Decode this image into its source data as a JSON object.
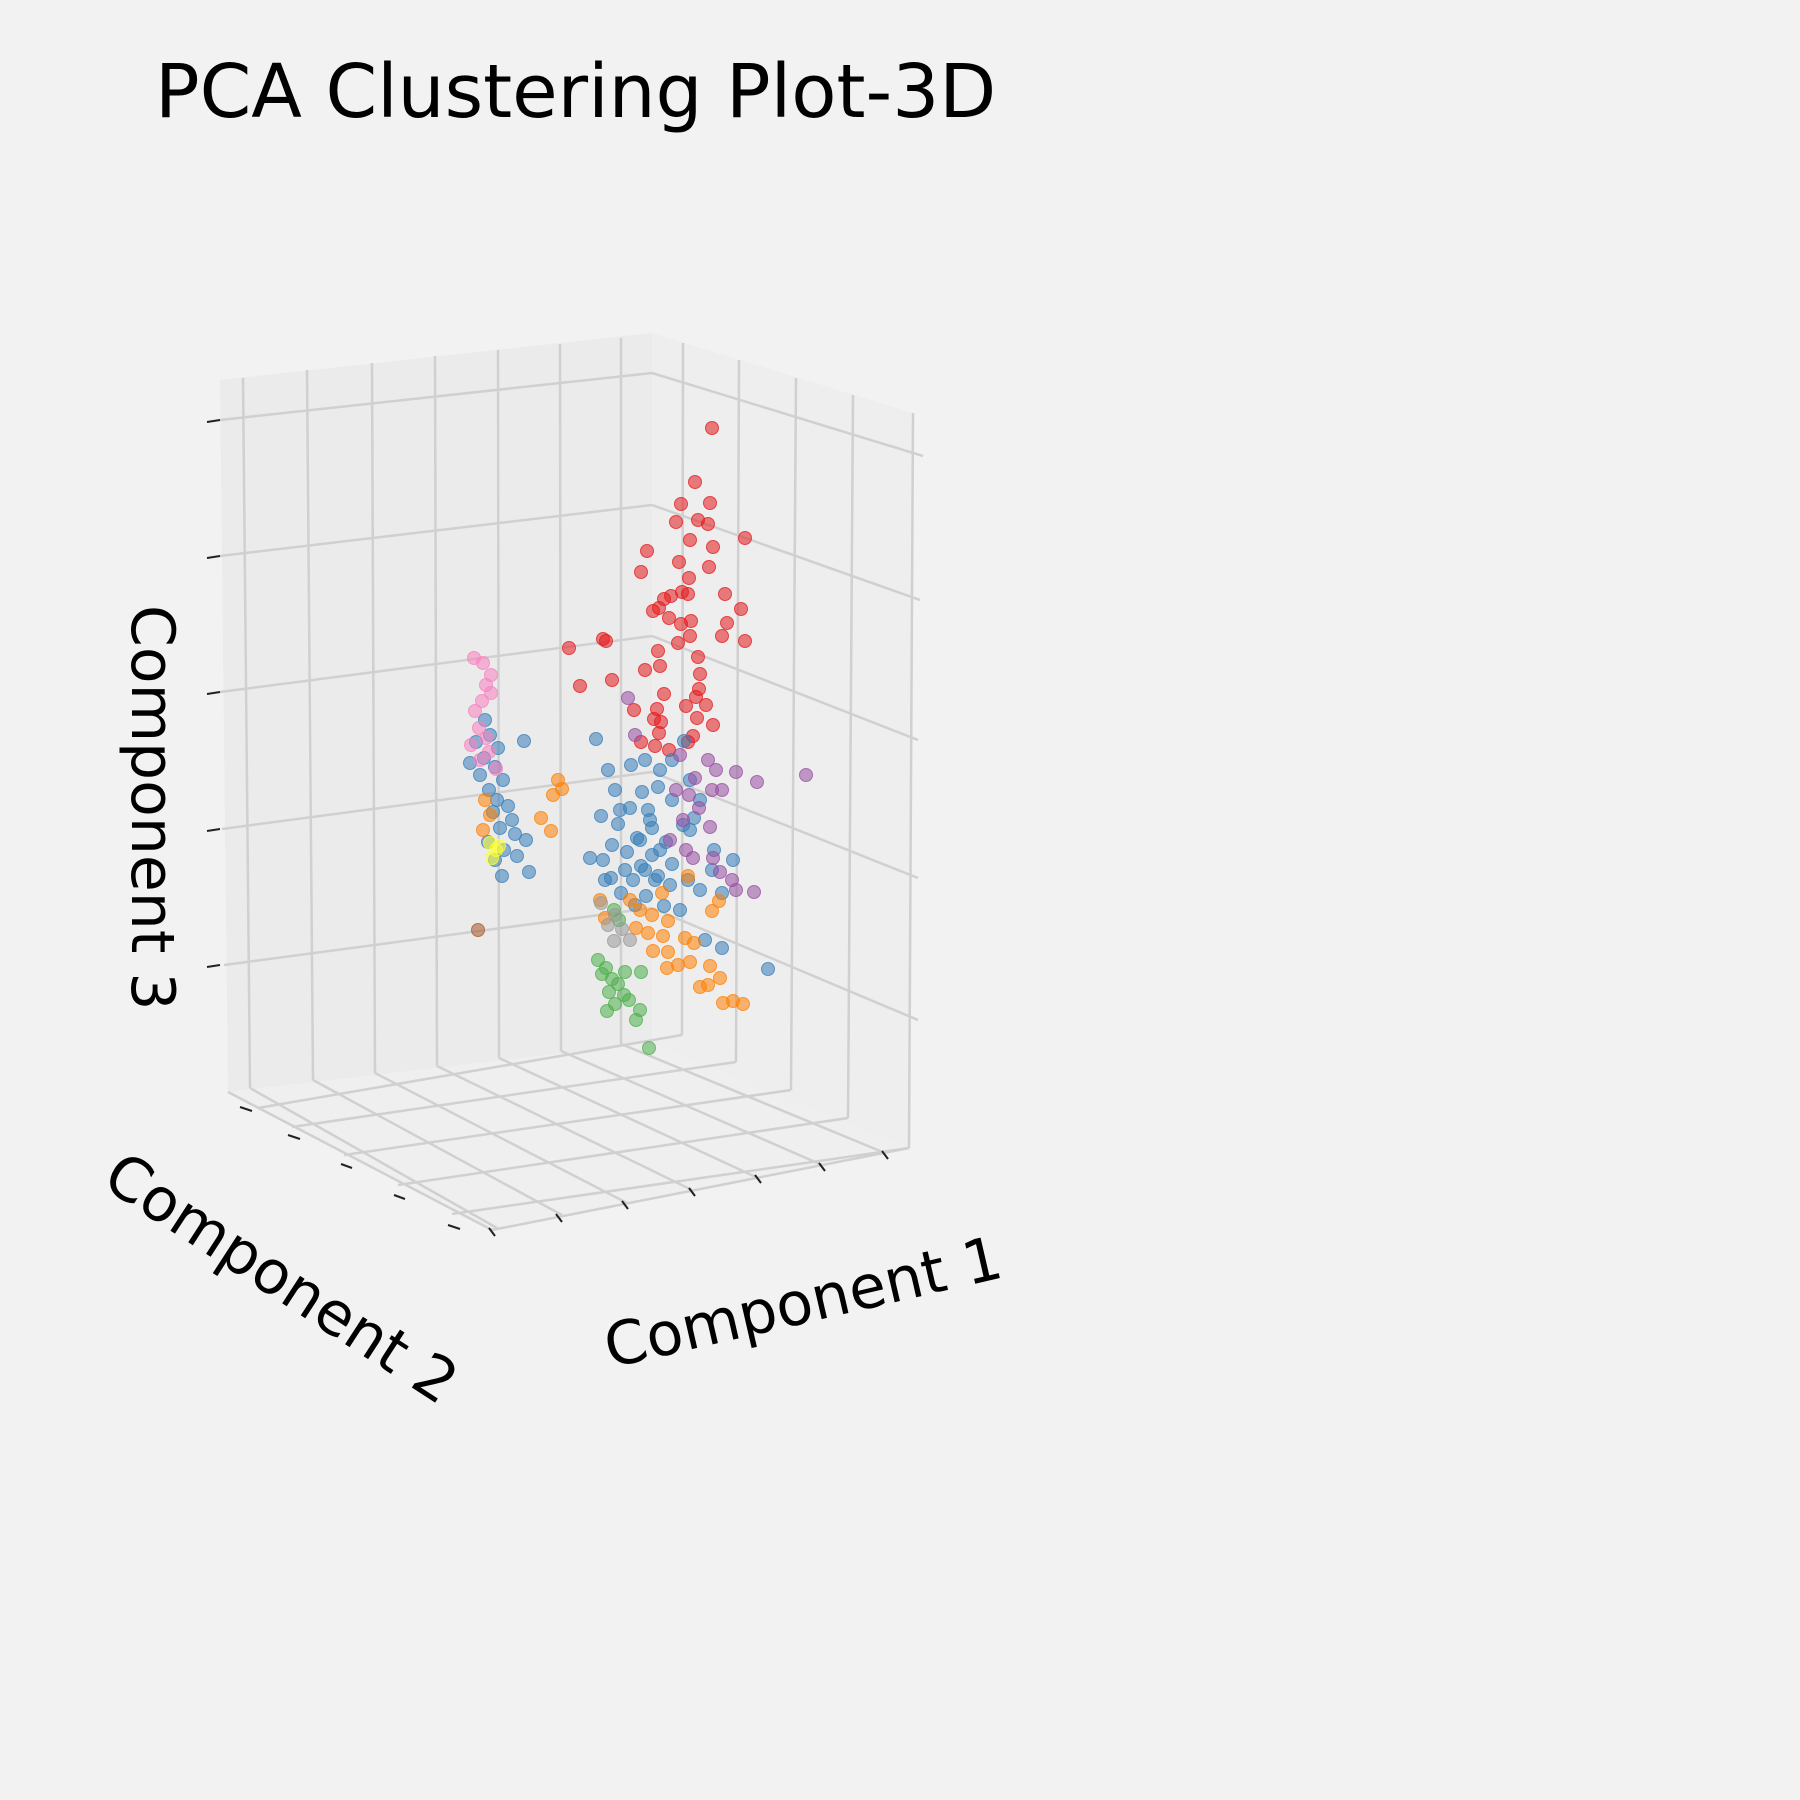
{
  "chart_data": {
    "type": "scatter",
    "title": "PCA Clustering Plot-3D",
    "xlabel": "Component 1",
    "ylabel": "Component 2",
    "zlabel": "Component 3",
    "tick_labels_shown": false,
    "grid": true,
    "legend": "none",
    "colors": {
      "background": "#f2f2f2",
      "pane_back": "#ebebeb",
      "pane_side": "#eeeeee",
      "pane_floor": "#efefef",
      "gridline": "#d0d0d0"
    },
    "series": [
      {
        "color": "#e41a1c",
        "points": [
          [
            712,
            428
          ],
          [
            695,
            482
          ],
          [
            681,
            504
          ],
          [
            710,
            503
          ],
          [
            676,
            522
          ],
          [
            698,
            520
          ],
          [
            708,
            524
          ],
          [
            690,
            540
          ],
          [
            745,
            538
          ],
          [
            713,
            547
          ],
          [
            647,
            551
          ],
          [
            679,
            562
          ],
          [
            709,
            567
          ],
          [
            641,
            572
          ],
          [
            689,
            578
          ],
          [
            682,
            592
          ],
          [
            688,
            594
          ],
          [
            671,
            596
          ],
          [
            664,
            599
          ],
          [
            725,
            594
          ],
          [
            659,
            608
          ],
          [
            741,
            609
          ],
          [
            653,
            611
          ],
          [
            691,
            621
          ],
          [
            669,
            618
          ],
          [
            727,
            623
          ],
          [
            681,
            624
          ],
          [
            603,
            639
          ],
          [
            606,
            641
          ],
          [
            722,
            636
          ],
          [
            745,
            641
          ],
          [
            690,
            636
          ],
          [
            678,
            643
          ],
          [
            658,
            651
          ],
          [
            569,
            648
          ],
          [
            698,
            657
          ],
          [
            645,
            670
          ],
          [
            660,
            666
          ],
          [
            612,
            680
          ],
          [
            580,
            686
          ],
          [
            700,
            674
          ],
          [
            699,
            689
          ],
          [
            664,
            694
          ],
          [
            696,
            697
          ],
          [
            706,
            705
          ],
          [
            686,
            706
          ],
          [
            657,
            709
          ],
          [
            634,
            710
          ],
          [
            697,
            718
          ],
          [
            654,
            719
          ],
          [
            661,
            722
          ],
          [
            713,
            725
          ],
          [
            659,
            733
          ],
          [
            693,
            736
          ],
          [
            655,
            746
          ],
          [
            641,
            742
          ],
          [
            669,
            750
          ],
          [
            688,
            742
          ]
        ]
      },
      {
        "color": "#377eb8",
        "points": [
          [
            485,
            720
          ],
          [
            490,
            735
          ],
          [
            476,
            742
          ],
          [
            498,
            748
          ],
          [
            484,
            758
          ],
          [
            470,
            763
          ],
          [
            495,
            767
          ],
          [
            480,
            775
          ],
          [
            503,
            780
          ],
          [
            489,
            790
          ],
          [
            497,
            800
          ],
          [
            508,
            806
          ],
          [
            493,
            812
          ],
          [
            512,
            820
          ],
          [
            500,
            828
          ],
          [
            515,
            834
          ],
          [
            488,
            842
          ],
          [
            504,
            850
          ],
          [
            495,
            860
          ],
          [
            517,
            856
          ],
          [
            526,
            840
          ],
          [
            502,
            876
          ],
          [
            529,
            872
          ],
          [
            524,
            741
          ],
          [
            596,
            739
          ],
          [
            608,
            770
          ],
          [
            631,
            765
          ],
          [
            645,
            760
          ],
          [
            660,
            770
          ],
          [
            684,
            741
          ],
          [
            672,
            760
          ],
          [
            690,
            780
          ],
          [
            615,
            790
          ],
          [
            642,
            792
          ],
          [
            658,
            787
          ],
          [
            672,
            800
          ],
          [
            648,
            810
          ],
          [
            630,
            808
          ],
          [
            618,
            824
          ],
          [
            637,
            838
          ],
          [
            652,
            828
          ],
          [
            666,
            842
          ],
          [
            683,
            825
          ],
          [
            694,
            818
          ],
          [
            601,
            816
          ],
          [
            627,
            852
          ],
          [
            641,
            866
          ],
          [
            652,
            855
          ],
          [
            658,
            876
          ],
          [
            672,
            864
          ],
          [
            688,
            880
          ],
          [
            603,
            860
          ],
          [
            611,
            878
          ],
          [
            621,
            893
          ],
          [
            646,
            896
          ],
          [
            664,
            906
          ],
          [
            700,
            890
          ],
          [
            712,
            870
          ],
          [
            722,
            893
          ],
          [
            733,
            860
          ],
          [
            590,
            858
          ],
          [
            612,
            845
          ],
          [
            633,
            880
          ],
          [
            680,
            910
          ],
          [
            705,
            940
          ],
          [
            722,
            948
          ],
          [
            768,
            969
          ],
          [
            690,
            830
          ],
          [
            714,
            850
          ],
          [
            700,
            800
          ],
          [
            620,
            810
          ],
          [
            650,
            820
          ],
          [
            640,
            840
          ],
          [
            660,
            850
          ],
          [
            670,
            885
          ],
          [
            635,
            905
          ],
          [
            625,
            870
          ],
          [
            605,
            880
          ],
          [
            645,
            870
          ],
          [
            655,
            880
          ]
        ]
      },
      {
        "color": "#4daf4a",
        "points": [
          [
            598,
            960
          ],
          [
            606,
            968
          ],
          [
            602,
            974
          ],
          [
            612,
            979
          ],
          [
            618,
            984
          ],
          [
            625,
            972
          ],
          [
            609,
            992
          ],
          [
            624,
            995
          ],
          [
            629,
            1000
          ],
          [
            615,
            1004
          ],
          [
            641,
            972
          ],
          [
            640,
            1010
          ],
          [
            607,
            1011
          ],
          [
            636,
            1020
          ],
          [
            649,
            1048
          ],
          [
            619,
            920
          ],
          [
            614,
            910
          ]
        ]
      },
      {
        "color": "#984ea3",
        "points": [
          [
            628,
            698
          ],
          [
            635,
            735
          ],
          [
            708,
            760
          ],
          [
            716,
            770
          ],
          [
            722,
            790
          ],
          [
            736,
            772
          ],
          [
            757,
            782
          ],
          [
            806,
            775
          ],
          [
            680,
            755
          ],
          [
            695,
            778
          ],
          [
            689,
            795
          ],
          [
            712,
            790
          ],
          [
            699,
            808
          ],
          [
            710,
            827
          ],
          [
            693,
            858
          ],
          [
            713,
            858
          ],
          [
            720,
            872
          ],
          [
            732,
            880
          ],
          [
            736,
            890
          ],
          [
            754,
            892
          ],
          [
            683,
            820
          ],
          [
            670,
            840
          ],
          [
            676,
            790
          ],
          [
            686,
            850
          ]
        ]
      },
      {
        "color": "#ff7f00",
        "points": [
          [
            558,
            780
          ],
          [
            562,
            789
          ],
          [
            553,
            795
          ],
          [
            541,
            818
          ],
          [
            551,
            831
          ],
          [
            485,
            800
          ],
          [
            490,
            815
          ],
          [
            483,
            830
          ],
          [
            630,
            900
          ],
          [
            640,
            910
          ],
          [
            652,
            915
          ],
          [
            668,
            921
          ],
          [
            636,
            928
          ],
          [
            648,
            933
          ],
          [
            663,
            936
          ],
          [
            685,
            938
          ],
          [
            694,
            943
          ],
          [
            653,
            951
          ],
          [
            668,
            952
          ],
          [
            710,
            966
          ],
          [
            678,
            965
          ],
          [
            667,
            968
          ],
          [
            690,
            962
          ],
          [
            720,
            978
          ],
          [
            700,
            987
          ],
          [
            708,
            985
          ],
          [
            733,
            1001
          ],
          [
            743,
            1004
          ],
          [
            723,
            1003
          ],
          [
            712,
            911
          ],
          [
            719,
            901
          ],
          [
            662,
            893
          ],
          [
            688,
            876
          ],
          [
            600,
            900
          ],
          [
            605,
            918
          ]
        ]
      },
      {
        "color": "#999999",
        "points": [
          [
            601,
            903
          ],
          [
            615,
            915
          ],
          [
            622,
            929
          ],
          [
            614,
            941
          ],
          [
            608,
            925
          ],
          [
            630,
            940
          ]
        ]
      },
      {
        "color": "#f781bf",
        "points": [
          [
            474,
            658
          ],
          [
            483,
            663
          ],
          [
            491,
            675
          ],
          [
            486,
            685
          ],
          [
            491,
            693
          ],
          [
            482,
            701
          ],
          [
            475,
            711
          ],
          [
            479,
            728
          ],
          [
            486,
            738
          ],
          [
            471,
            745
          ],
          [
            489,
            752
          ],
          [
            480,
            760
          ],
          [
            496,
            769
          ]
        ]
      },
      {
        "color": "#ffff33",
        "points": [
          [
            490,
            843
          ],
          [
            496,
            850
          ],
          [
            492,
            858
          ],
          [
            499,
            846
          ]
        ]
      },
      {
        "color": "#a65628",
        "points": [
          [
            478,
            930
          ]
        ]
      }
    ]
  }
}
